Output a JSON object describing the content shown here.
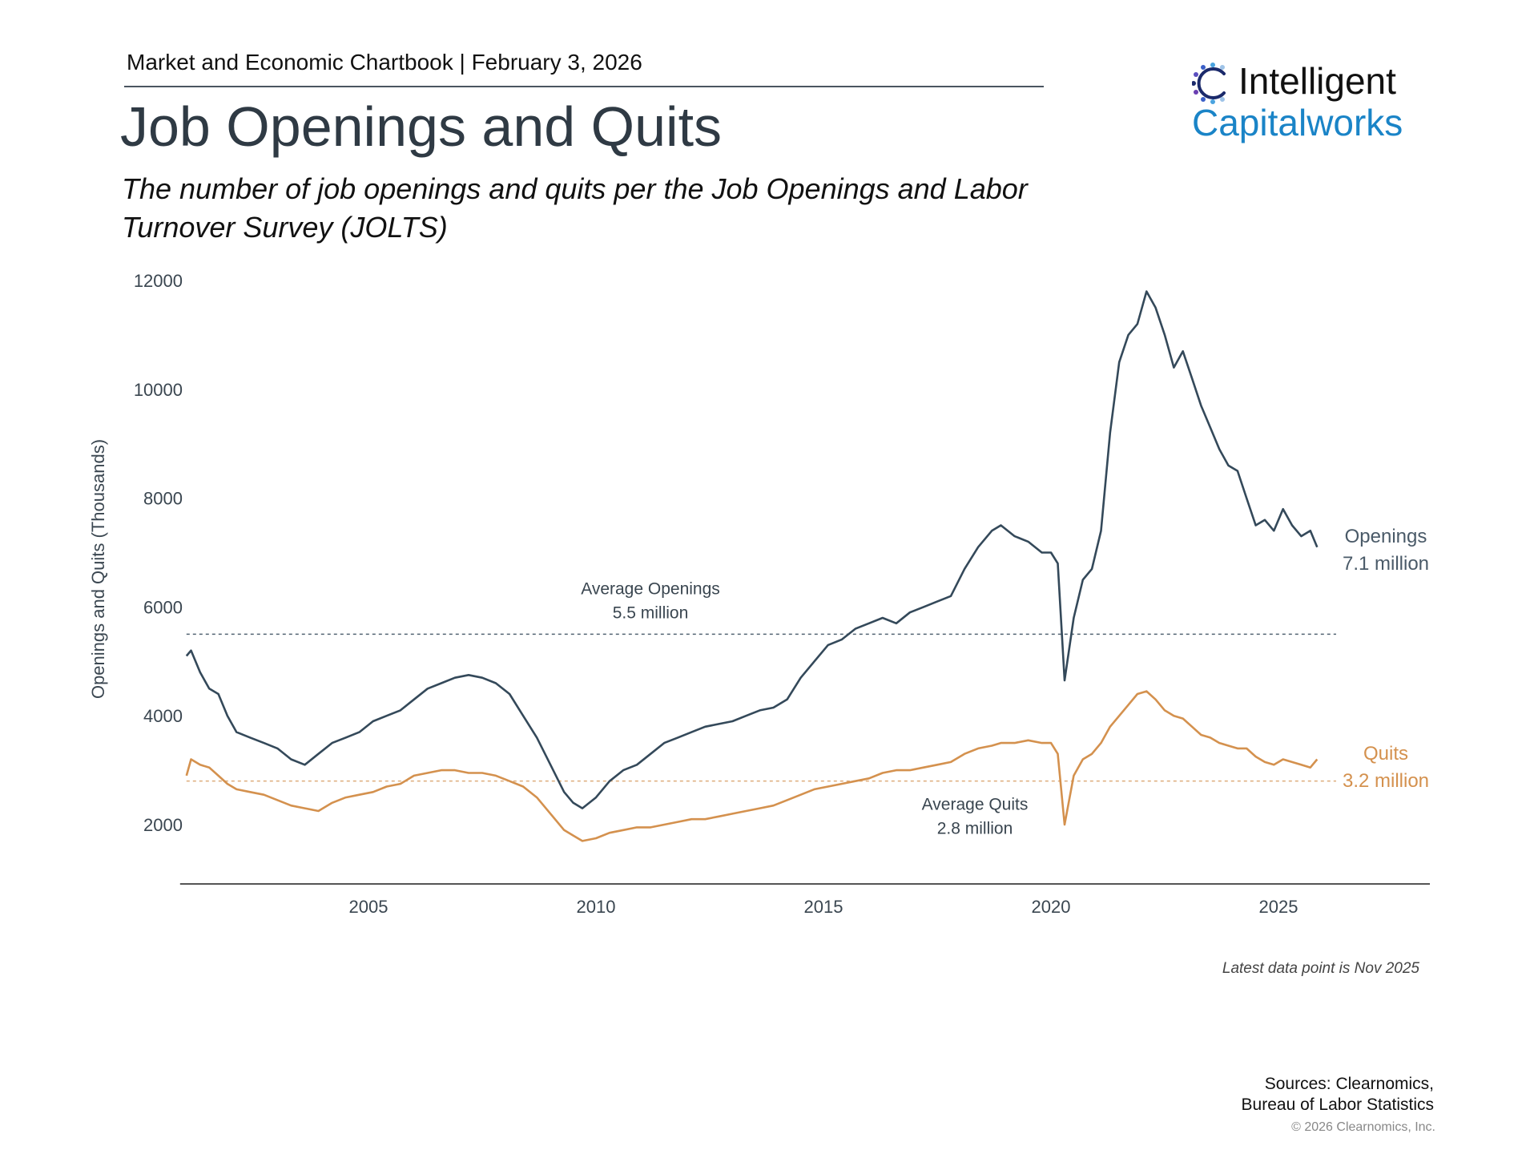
{
  "header": {
    "kicker": "Market and Economic Chartbook | February 3, 2026",
    "title": "Job Openings and Quits",
    "subtitle": "The number of job openings and quits per the Job Openings and Labor Turnover Survey (JOLTS)"
  },
  "logo": {
    "line1": "Intelligent",
    "line2": "Capitalworks"
  },
  "footer": {
    "note": "Latest data point is Nov 2025",
    "sources_line1": "Sources: Clearnomics,",
    "sources_line2": "Bureau of Labor Statistics",
    "copyright": "© 2026 Clearnomics, Inc."
  },
  "colors": {
    "openings": "#34495a",
    "quits": "#d4914e",
    "axis": "#555555",
    "brand_blue": "#1a84c7"
  },
  "chart_data": {
    "type": "line",
    "title": "Job Openings and Quits",
    "xlabel": "",
    "ylabel": "Openings and Quits (Thousands)",
    "xlim": [
      2001.0,
      2028.0
    ],
    "ylim": [
      1000,
      12300
    ],
    "xticks": [
      2005,
      2010,
      2015,
      2020,
      2025
    ],
    "yticks": [
      2000,
      4000,
      6000,
      8000,
      10000,
      12000
    ],
    "grid": false,
    "legend": "inline-right",
    "reference_lines": [
      {
        "name": "Average Openings",
        "value": 5500,
        "label_line1": "Average Openings",
        "label_line2": "5.5 million",
        "series": "openings"
      },
      {
        "name": "Average Quits",
        "value": 2800,
        "label_line1": "Average Quits",
        "label_line2": "2.8 million",
        "series": "quits"
      }
    ],
    "end_labels": [
      {
        "series": "openings",
        "line1": "Openings",
        "line2": "7.1 million"
      },
      {
        "series": "quits",
        "line1": "Quits",
        "line2": "3.2 million"
      }
    ],
    "series": [
      {
        "name": "Openings",
        "x": [
          2001.0,
          2001.1,
          2001.3,
          2001.5,
          2001.7,
          2001.9,
          2002.1,
          2002.4,
          2002.7,
          2003.0,
          2003.3,
          2003.6,
          2003.9,
          2004.2,
          2004.5,
          2004.8,
          2005.1,
          2005.4,
          2005.7,
          2006.0,
          2006.3,
          2006.6,
          2006.9,
          2007.2,
          2007.5,
          2007.8,
          2008.1,
          2008.4,
          2008.7,
          2009.0,
          2009.3,
          2009.5,
          2009.7,
          2010.0,
          2010.3,
          2010.6,
          2010.9,
          2011.2,
          2011.5,
          2011.8,
          2012.1,
          2012.4,
          2012.7,
          2013.0,
          2013.3,
          2013.6,
          2013.9,
          2014.2,
          2014.5,
          2014.8,
          2015.1,
          2015.4,
          2015.7,
          2016.0,
          2016.3,
          2016.6,
          2016.9,
          2017.2,
          2017.5,
          2017.8,
          2018.1,
          2018.4,
          2018.7,
          2018.9,
          2019.2,
          2019.5,
          2019.8,
          2020.0,
          2020.15,
          2020.3,
          2020.5,
          2020.7,
          2020.9,
          2021.1,
          2021.3,
          2021.5,
          2021.7,
          2021.9,
          2022.1,
          2022.3,
          2022.5,
          2022.7,
          2022.9,
          2023.1,
          2023.3,
          2023.5,
          2023.7,
          2023.9,
          2024.1,
          2024.3,
          2024.5,
          2024.7,
          2024.9,
          2025.1,
          2025.3,
          2025.5,
          2025.7,
          2025.85
        ],
        "values": [
          5100,
          5200,
          4800,
          4500,
          4400,
          4000,
          3700,
          3600,
          3500,
          3400,
          3200,
          3100,
          3300,
          3500,
          3600,
          3700,
          3900,
          4000,
          4100,
          4300,
          4500,
          4600,
          4700,
          4750,
          4700,
          4600,
          4400,
          4000,
          3600,
          3100,
          2600,
          2400,
          2300,
          2500,
          2800,
          3000,
          3100,
          3300,
          3500,
          3600,
          3700,
          3800,
          3850,
          3900,
          4000,
          4100,
          4150,
          4300,
          4700,
          5000,
          5300,
          5400,
          5600,
          5700,
          5800,
          5700,
          5900,
          6000,
          6100,
          6200,
          6700,
          7100,
          7400,
          7500,
          7300,
          7200,
          7000,
          7000,
          6800,
          4650,
          5800,
          6500,
          6700,
          7400,
          9200,
          10500,
          11000,
          11200,
          11800,
          11500,
          11000,
          10400,
          10700,
          10200,
          9700,
          9300,
          8900,
          8600,
          8500,
          8000,
          7500,
          7600,
          7400,
          7800,
          7500,
          7300,
          7400,
          7100
        ]
      },
      {
        "name": "Quits",
        "x": [
          2001.0,
          2001.1,
          2001.3,
          2001.5,
          2001.7,
          2001.9,
          2002.1,
          2002.4,
          2002.7,
          2003.0,
          2003.3,
          2003.6,
          2003.9,
          2004.2,
          2004.5,
          2004.8,
          2005.1,
          2005.4,
          2005.7,
          2006.0,
          2006.3,
          2006.6,
          2006.9,
          2007.2,
          2007.5,
          2007.8,
          2008.1,
          2008.4,
          2008.7,
          2009.0,
          2009.3,
          2009.5,
          2009.7,
          2010.0,
          2010.3,
          2010.6,
          2010.9,
          2011.2,
          2011.5,
          2011.8,
          2012.1,
          2012.4,
          2012.7,
          2013.0,
          2013.3,
          2013.6,
          2013.9,
          2014.2,
          2014.5,
          2014.8,
          2015.1,
          2015.4,
          2015.7,
          2016.0,
          2016.3,
          2016.6,
          2016.9,
          2017.2,
          2017.5,
          2017.8,
          2018.1,
          2018.4,
          2018.7,
          2018.9,
          2019.2,
          2019.5,
          2019.8,
          2020.0,
          2020.15,
          2020.3,
          2020.5,
          2020.7,
          2020.9,
          2021.1,
          2021.3,
          2021.5,
          2021.7,
          2021.9,
          2022.1,
          2022.3,
          2022.5,
          2022.7,
          2022.9,
          2023.1,
          2023.3,
          2023.5,
          2023.7,
          2023.9,
          2024.1,
          2024.3,
          2024.5,
          2024.7,
          2024.9,
          2025.1,
          2025.3,
          2025.5,
          2025.7,
          2025.85
        ],
        "values": [
          2900,
          3200,
          3100,
          3050,
          2900,
          2750,
          2650,
          2600,
          2550,
          2450,
          2350,
          2300,
          2250,
          2400,
          2500,
          2550,
          2600,
          2700,
          2750,
          2900,
          2950,
          3000,
          3000,
          2950,
          2950,
          2900,
          2800,
          2700,
          2500,
          2200,
          1900,
          1800,
          1700,
          1750,
          1850,
          1900,
          1950,
          1950,
          2000,
          2050,
          2100,
          2100,
          2150,
          2200,
          2250,
          2300,
          2350,
          2450,
          2550,
          2650,
          2700,
          2750,
          2800,
          2850,
          2950,
          3000,
          3000,
          3050,
          3100,
          3150,
          3300,
          3400,
          3450,
          3500,
          3500,
          3550,
          3500,
          3500,
          3300,
          2000,
          2900,
          3200,
          3300,
          3500,
          3800,
          4000,
          4200,
          4400,
          4450,
          4300,
          4100,
          4000,
          3950,
          3800,
          3650,
          3600,
          3500,
          3450,
          3400,
          3400,
          3250,
          3150,
          3100,
          3200,
          3150,
          3100,
          3050,
          3200
        ]
      }
    ]
  }
}
